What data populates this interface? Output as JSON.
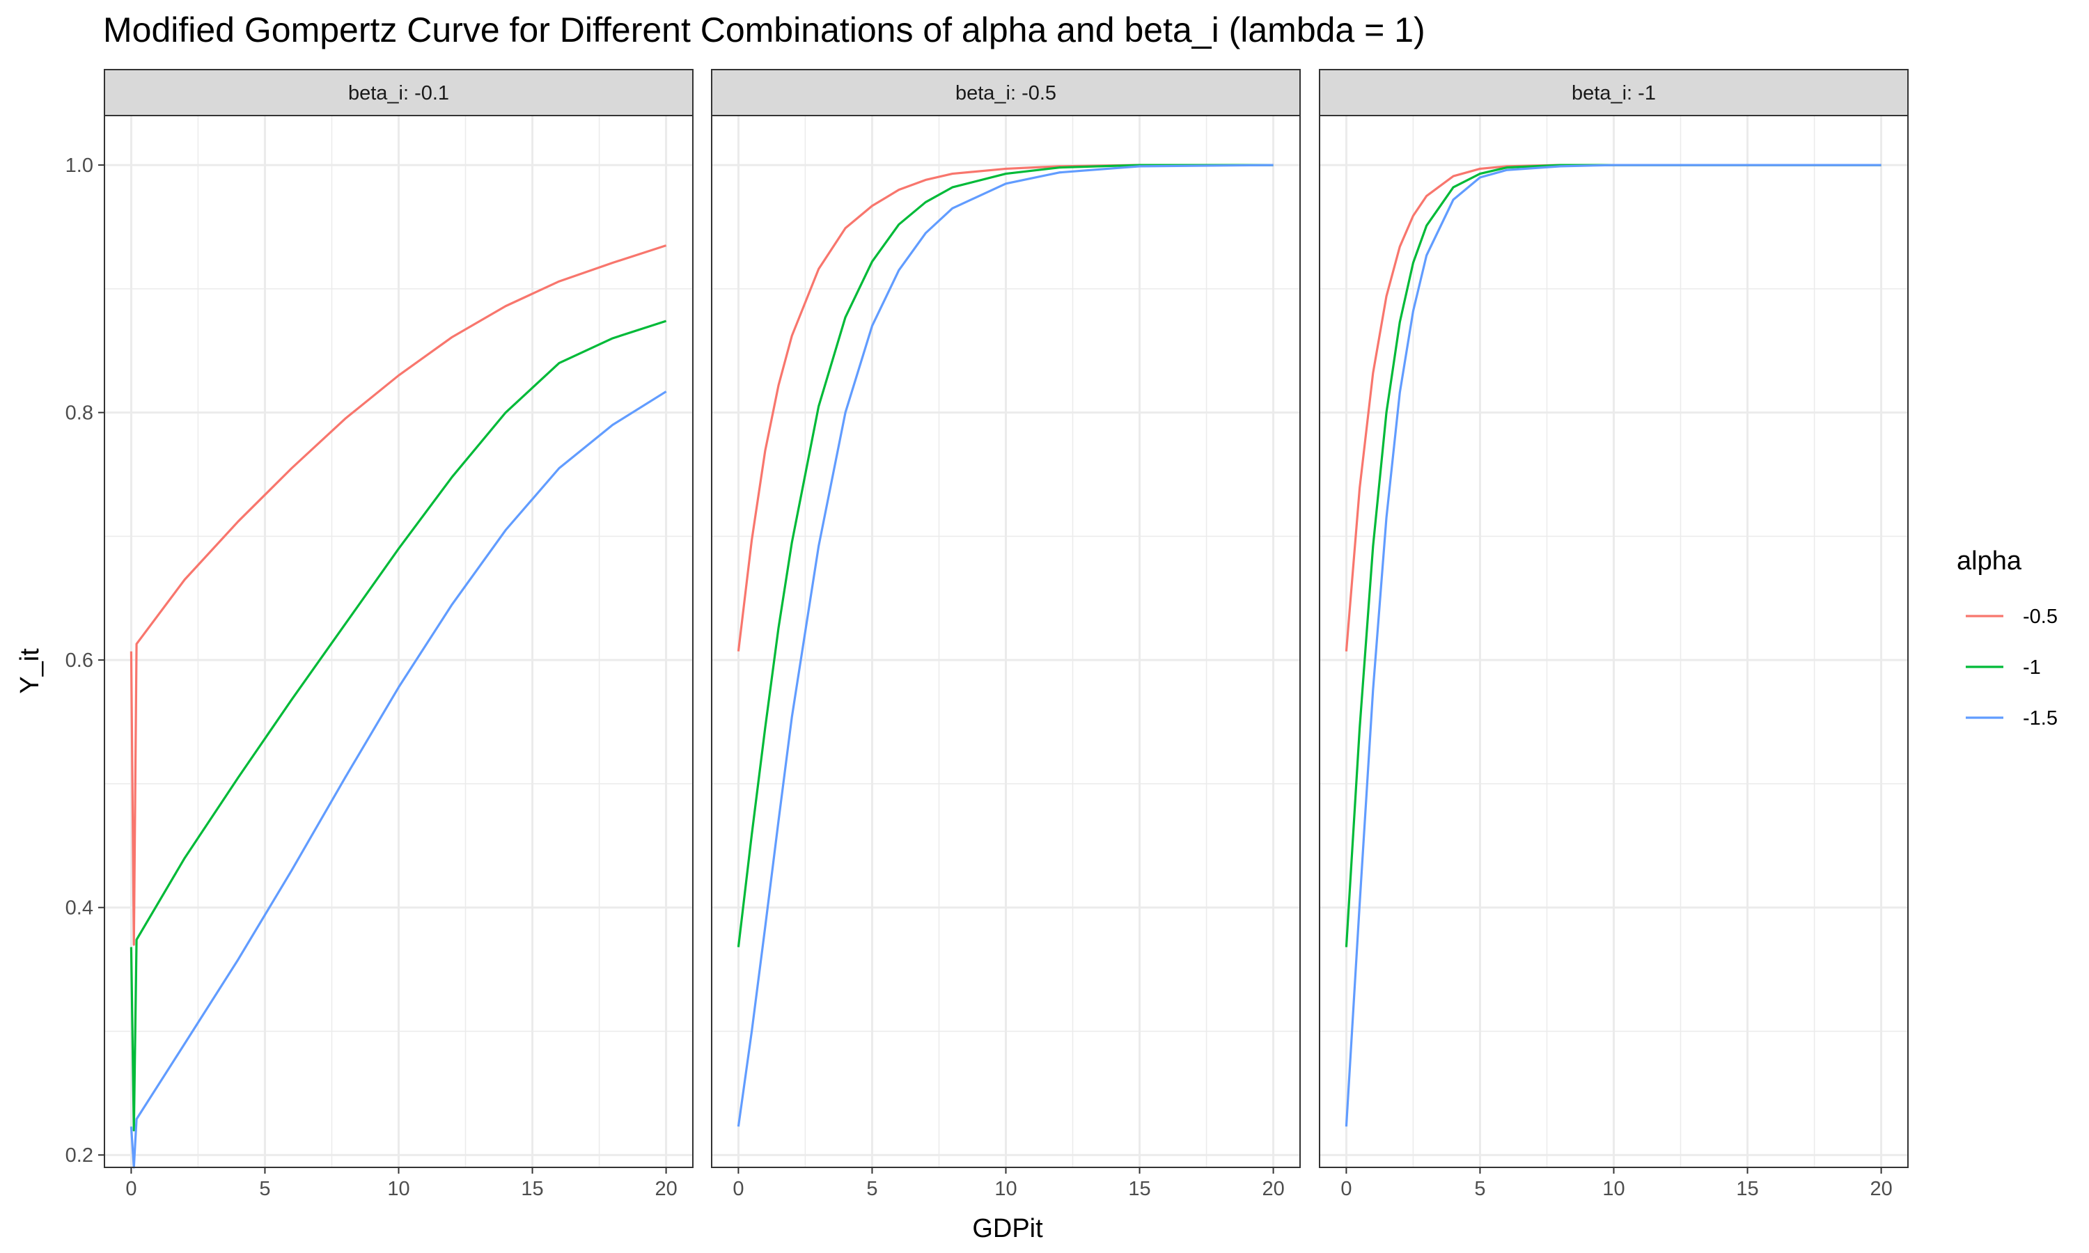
{
  "chart_data": {
    "type": "line",
    "title": "Modified Gompertz Curve for Different Combinations of alpha and beta_i (lambda = 1)",
    "xlabel": "GDPit",
    "ylabel": "Y_it",
    "xlim": [
      -1,
      21
    ],
    "ylim": [
      0.19,
      1.04
    ],
    "x_ticks": [
      0,
      5,
      10,
      15,
      20
    ],
    "x_tick_labels": [
      "0",
      "5",
      "10",
      "15",
      "20"
    ],
    "y_ticks": [
      0.2,
      0.4,
      0.6,
      0.8,
      1.0
    ],
    "y_tick_labels": [
      "0.2",
      "0.4",
      "0.6",
      "0.8",
      "1.0"
    ],
    "grid": true,
    "legend": {
      "title": "alpha",
      "placement": "right",
      "entries": [
        {
          "label": "-0.5",
          "color": "#F8766D"
        },
        {
          "label": "-1",
          "color": "#00BA38"
        },
        {
          "label": "-1.5",
          "color": "#619CFF"
        }
      ]
    },
    "panels": [
      {
        "strip": "beta_i: -0.1",
        "series": [
          {
            "name": "-0.5",
            "color": "#F8766D",
            "x": [
              0,
              0.1,
              0.2,
              2,
              4,
              6,
              8,
              10,
              12,
              14,
              16,
              18,
              20
            ],
            "y": [
              0.607,
              0.37,
              0.613,
              0.665,
              0.712,
              0.755,
              0.795,
              0.83,
              0.861,
              0.886,
              0.906,
              0.921,
              0.935
            ]
          },
          {
            "name": "-1",
            "color": "#00BA38",
            "x": [
              0,
              0.1,
              0.2,
              2,
              4,
              6,
              8,
              10,
              12,
              14,
              16,
              18,
              20
            ],
            "y": [
              0.368,
              0.22,
              0.374,
              0.44,
              0.505,
              0.568,
              0.629,
              0.69,
              0.748,
              0.8,
              0.84,
              0.86,
              0.874
            ]
          },
          {
            "name": "-1.5",
            "color": "#619CFF",
            "x": [
              0,
              0.1,
              0.2,
              2,
              4,
              6,
              8,
              10,
              12,
              14,
              16,
              18,
              20
            ],
            "y": [
              0.223,
              0.19,
              0.229,
              0.29,
              0.358,
              0.43,
              0.505,
              0.578,
              0.645,
              0.705,
              0.755,
              0.79,
              0.817
            ]
          }
        ]
      },
      {
        "strip": "beta_i: -0.5",
        "series": [
          {
            "name": "-0.5",
            "color": "#F8766D",
            "x": [
              0,
              0.5,
              1,
              1.5,
              2,
              3,
              4,
              5,
              6,
              7,
              8,
              10,
              12,
              15,
              20
            ],
            "y": [
              0.607,
              0.697,
              0.769,
              0.822,
              0.862,
              0.916,
              0.949,
              0.967,
              0.98,
              0.988,
              0.993,
              0.997,
              0.999,
              1.0,
              1.0
            ]
          },
          {
            "name": "-1",
            "color": "#00BA38",
            "x": [
              0,
              0.5,
              1,
              1.5,
              2,
              3,
              4,
              5,
              6,
              7,
              8,
              10,
              12,
              15,
              20
            ],
            "y": [
              0.368,
              0.459,
              0.545,
              0.626,
              0.695,
              0.805,
              0.877,
              0.922,
              0.952,
              0.97,
              0.982,
              0.993,
              0.998,
              1.0,
              1.0
            ]
          },
          {
            "name": "-1.5",
            "color": "#619CFF",
            "x": [
              0,
              0.5,
              1,
              1.5,
              2,
              3,
              4,
              5,
              6,
              7,
              8,
              10,
              12,
              15,
              20
            ],
            "y": [
              0.223,
              0.3,
              0.384,
              0.47,
              0.554,
              0.692,
              0.8,
              0.87,
              0.915,
              0.945,
              0.965,
              0.985,
              0.994,
              0.999,
              1.0
            ]
          }
        ]
      },
      {
        "strip": "beta_i: -1",
        "series": [
          {
            "name": "-0.5",
            "color": "#F8766D",
            "x": [
              0,
              0.5,
              1,
              1.5,
              2,
              2.5,
              3,
              4,
              5,
              6,
              8,
              10,
              15,
              20
            ],
            "y": [
              0.607,
              0.739,
              0.832,
              0.894,
              0.934,
              0.959,
              0.975,
              0.991,
              0.997,
              0.999,
              1.0,
              1.0,
              1.0,
              1.0
            ]
          },
          {
            "name": "-1",
            "color": "#00BA38",
            "x": [
              0,
              0.5,
              1,
              1.5,
              2,
              2.5,
              3,
              4,
              5,
              6,
              8,
              10,
              15,
              20
            ],
            "y": [
              0.368,
              0.545,
              0.692,
              0.8,
              0.873,
              0.921,
              0.951,
              0.982,
              0.993,
              0.998,
              1.0,
              1.0,
              1.0,
              1.0
            ]
          },
          {
            "name": "-1.5",
            "color": "#619CFF",
            "x": [
              0,
              0.5,
              1,
              1.5,
              2,
              2.5,
              3,
              4,
              5,
              6,
              8,
              10,
              15,
              20
            ],
            "y": [
              0.223,
              0.403,
              0.576,
              0.715,
              0.816,
              0.882,
              0.927,
              0.972,
              0.99,
              0.996,
              0.999,
              1.0,
              1.0,
              1.0
            ]
          }
        ]
      }
    ]
  }
}
